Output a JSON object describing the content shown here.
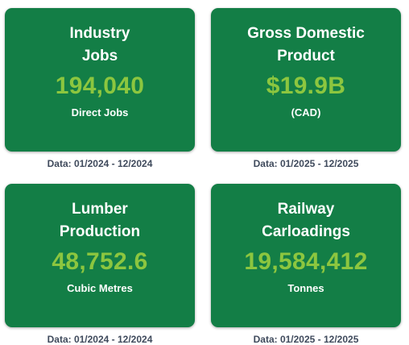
{
  "stats": [
    {
      "title": "Industry\nJobs",
      "value": "194,040",
      "unit": "Direct Jobs",
      "period": "Data: 01/2024 - 12/2024"
    },
    {
      "title": "Gross Domestic\nProduct",
      "value": "$19.9B",
      "unit": "(CAD)",
      "period": "Data: 01/2025 - 12/2025"
    },
    {
      "title": "Lumber\nProduction",
      "value": "48,752.6",
      "unit": "Cubic Metres",
      "period": "Data: 01/2024 - 12/2024"
    },
    {
      "title": "Railway\nCarloadings",
      "value": "19,584,412",
      "unit": "Tonnes",
      "period": "Data: 01/2025 - 12/2025"
    }
  ],
  "colors": {
    "card_background": "#137e46",
    "value_accent": "#8cc63f",
    "title_text": "#ffffff",
    "period_text": "#3f4a5c"
  }
}
